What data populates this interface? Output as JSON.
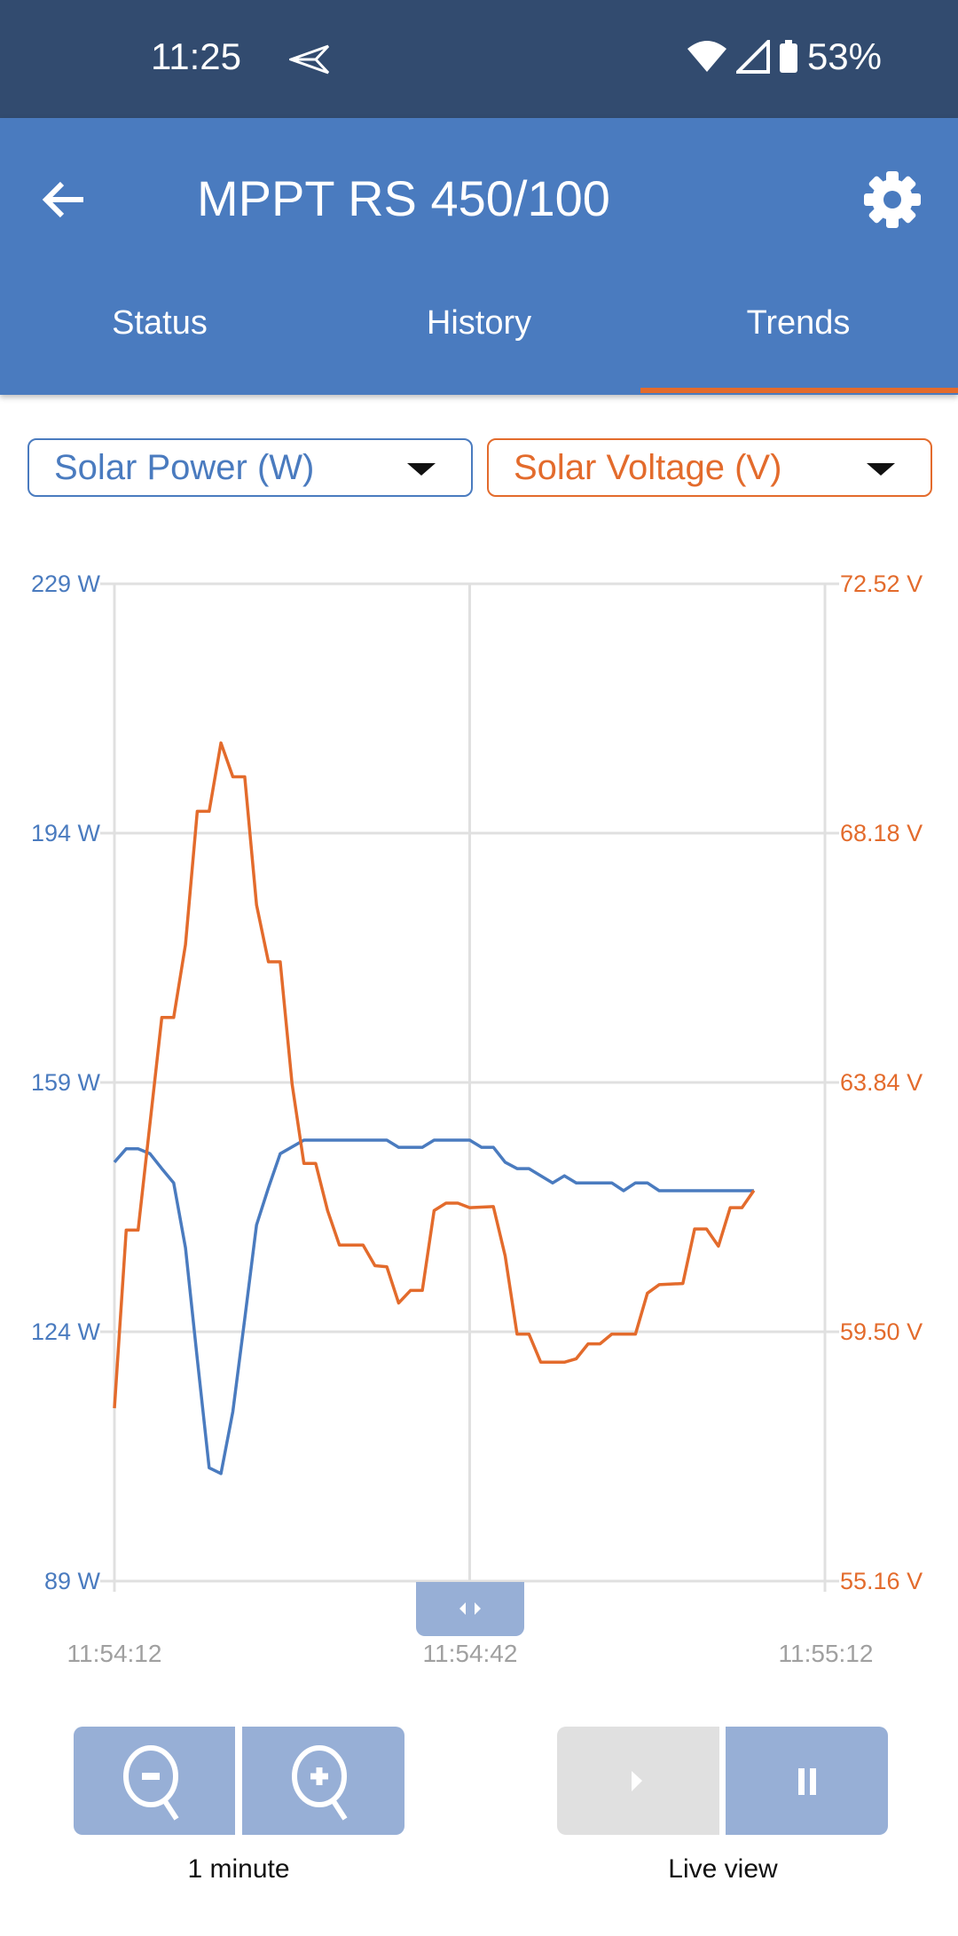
{
  "status_bar": {
    "time": "11:25",
    "battery": "53%",
    "icons": [
      "send-icon",
      "wifi-icon",
      "signal-icon",
      "battery-icon"
    ]
  },
  "header": {
    "title": "MPPT RS 450/100",
    "back_icon": "arrow-left-icon",
    "settings_icon": "gear-icon"
  },
  "tabs": [
    {
      "label": "Status",
      "active": false
    },
    {
      "label": "History",
      "active": false
    },
    {
      "label": "Trends",
      "active": true
    }
  ],
  "selectors": {
    "left": {
      "value": "Solar Power (W)",
      "color": "#4a7bbf"
    },
    "right": {
      "value": "Solar Voltage (V)",
      "color": "#e36b2c"
    }
  },
  "chart_data": {
    "type": "line",
    "grid": true,
    "x_ticks": [
      "11:54:12",
      "11:54:42",
      "11:55:12"
    ],
    "xlim": [
      "11:54:12",
      "11:55:12"
    ],
    "y_left": {
      "ticks": [
        "229 W",
        "194 W",
        "159 W",
        "124 W",
        "89 W"
      ],
      "ylim": [
        89,
        229
      ],
      "color": "#4a7bbf"
    },
    "y_right": {
      "ticks": [
        "72.52 V",
        "68.18 V",
        "63.84 V",
        "59.50 V",
        "55.16 V"
      ],
      "ylim": [
        55.16,
        72.52
      ],
      "color": "#e36b2c"
    },
    "series": [
      {
        "name": "Solar Power (W)",
        "axis": "left",
        "color": "#4a7bbf",
        "x": [
          "11:54:12",
          "11:54:13",
          "11:54:14",
          "11:54:15",
          "11:54:16",
          "11:54:17",
          "11:54:18",
          "11:54:19",
          "11:54:20",
          "11:54:21",
          "11:54:22",
          "11:54:23",
          "11:54:24",
          "11:54:25",
          "11:54:26",
          "11:54:28",
          "11:54:35",
          "11:54:36",
          "11:54:38",
          "11:54:39",
          "11:54:42",
          "11:54:43",
          "11:54:44",
          "11:54:45",
          "11:54:46",
          "11:54:47",
          "11:54:49",
          "11:54:50",
          "11:54:51",
          "11:54:54",
          "11:54:55",
          "11:54:56",
          "11:54:57",
          "11:54:58",
          "11:55:06"
        ],
        "y": [
          147.8,
          149.7,
          149.7,
          149.0,
          146.9,
          144.9,
          135.8,
          120.2,
          104.9,
          104.1,
          112.8,
          125.8,
          139.0,
          144.2,
          149.0,
          150.9,
          150.9,
          149.9,
          149.9,
          150.9,
          150.9,
          149.9,
          149.9,
          147.8,
          146.9,
          146.9,
          144.9,
          145.9,
          144.9,
          144.9,
          143.8,
          144.9,
          144.9,
          143.8,
          143.8
        ]
      },
      {
        "name": "Solar Voltage (V)",
        "axis": "right",
        "color": "#e36b2c",
        "x": [
          "11:54:12",
          "11:54:13",
          "11:54:14",
          "11:54:16",
          "11:54:17",
          "11:54:18",
          "11:54:19",
          "11:54:20",
          "11:54:21",
          "11:54:22",
          "11:54:23",
          "11:54:24",
          "11:54:25",
          "11:54:26",
          "11:54:27",
          "11:54:28",
          "11:54:29",
          "11:54:30",
          "11:54:31",
          "11:54:33",
          "11:54:34",
          "11:54:35",
          "11:54:36",
          "11:54:37",
          "11:54:38",
          "11:54:39",
          "11:54:40",
          "11:54:41",
          "11:54:42",
          "11:54:44",
          "11:54:45",
          "11:54:46",
          "11:54:47",
          "11:54:48",
          "11:54:50",
          "11:54:51",
          "11:54:52",
          "11:54:53",
          "11:54:54",
          "11:54:56",
          "11:54:57",
          "11:54:58",
          "11:55:00",
          "11:55:01",
          "11:55:02",
          "11:55:03",
          "11:55:04",
          "11:55:05",
          "11:55:06"
        ],
        "y": [
          58.17,
          61.27,
          61.27,
          64.97,
          64.97,
          66.24,
          68.56,
          68.56,
          69.75,
          69.16,
          69.16,
          66.93,
          65.94,
          65.94,
          63.81,
          62.43,
          62.43,
          61.61,
          61.01,
          61.01,
          60.65,
          60.63,
          60.0,
          60.22,
          60.22,
          61.61,
          61.74,
          61.74,
          61.66,
          61.68,
          60.82,
          59.46,
          59.46,
          58.97,
          58.97,
          59.03,
          59.29,
          59.29,
          59.46,
          59.46,
          60.17,
          60.32,
          60.34,
          61.29,
          61.29,
          60.99,
          61.66,
          61.66,
          61.96
        ]
      }
    ]
  },
  "controls": {
    "zoom_label": "1 minute",
    "live_label": "Live view",
    "zoom_out_icon": "zoom-out-icon",
    "zoom_in_icon": "zoom-in-icon",
    "play_icon": "play-icon",
    "pause_icon": "pause-icon",
    "play_enabled": false
  }
}
